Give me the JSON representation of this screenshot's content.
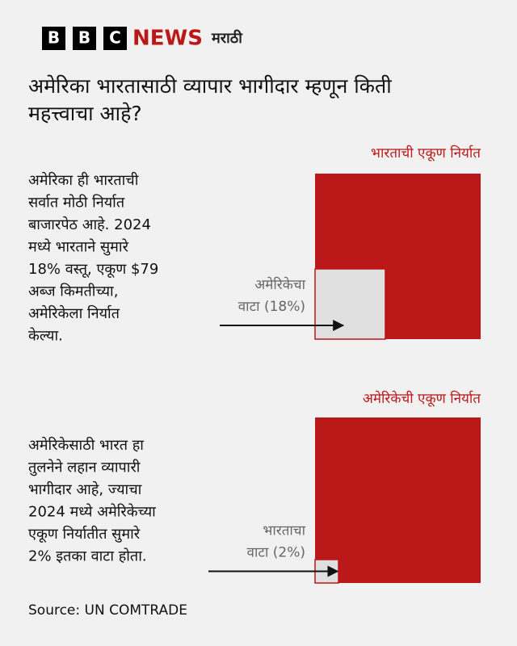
{
  "header": {
    "logo": [
      "B",
      "B",
      "C"
    ],
    "brand": "NEWS",
    "language": "मराठी"
  },
  "title": [
    "अमेरिका भारतासाठी व्यापार भागीदार म्हणून किती",
    "महत्त्वाचा आहे?"
  ],
  "source": "Source: UN COMTRADE",
  "chart_data": [
    {
      "type": "square",
      "title": "भारताची एकूण निर्यात",
      "description": [
        "अमेरिका ही भारताची",
        "सर्वात मोठी निर्यात",
        "बाजारपेठ आहे. 2024",
        "मध्ये भारताने सुमारे",
        "18% वस्तू, एकूण $79",
        "अब्ज किमतीच्या,",
        "अमेरिकेला निर्यात",
        "केल्या."
      ],
      "label": "अमेरिकेचा",
      "values": [
        18
      ],
      "value_labels": [
        "वाटा (18%)"
      ],
      "color": "#bb1919"
    },
    {
      "type": "square",
      "title": "अमेरिकेची एकूण निर्यात",
      "description": [
        "अमेरिकेसाठी भारत हा",
        "तुलनेने लहान व्यापारी",
        "भागीदार आहे, ज्याचा",
        "2024 मध्ये अमेरिकेच्या",
        "एकूण निर्यातीत सुमारे",
        "2% इतका वाटा होता."
      ],
      "label": "भारताचा",
      "values": [
        2
      ],
      "value_labels": [
        "वाटा (2%)"
      ],
      "color": "#bb1919"
    }
  ]
}
